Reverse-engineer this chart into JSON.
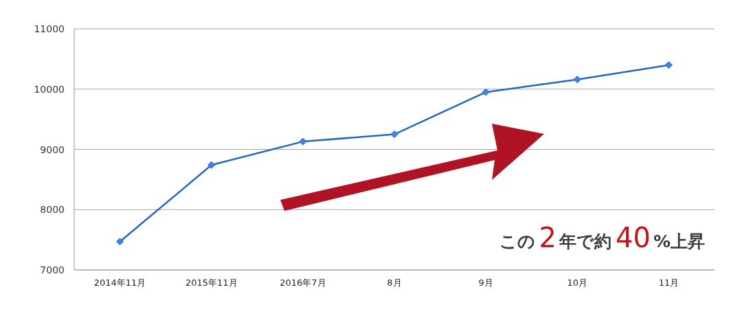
{
  "chart_data": {
    "type": "line",
    "categories": [
      "2014年11月",
      "2015年11月",
      "2016年7月",
      "8月",
      "9月",
      "10月",
      "11月"
    ],
    "series": [
      {
        "color": "#2566c4",
        "values": [
          7470,
          8740,
          9130,
          9250,
          9950,
          10160,
          10400
        ]
      }
    ],
    "ylim": [
      7000,
      11000
    ],
    "yticks": [
      7000,
      8000,
      9000,
      10000,
      11000
    ],
    "grid": "y",
    "marker": "diamond",
    "line_style": "solid",
    "annotations": [
      "この2年で約40%上昇"
    ]
  }
}
